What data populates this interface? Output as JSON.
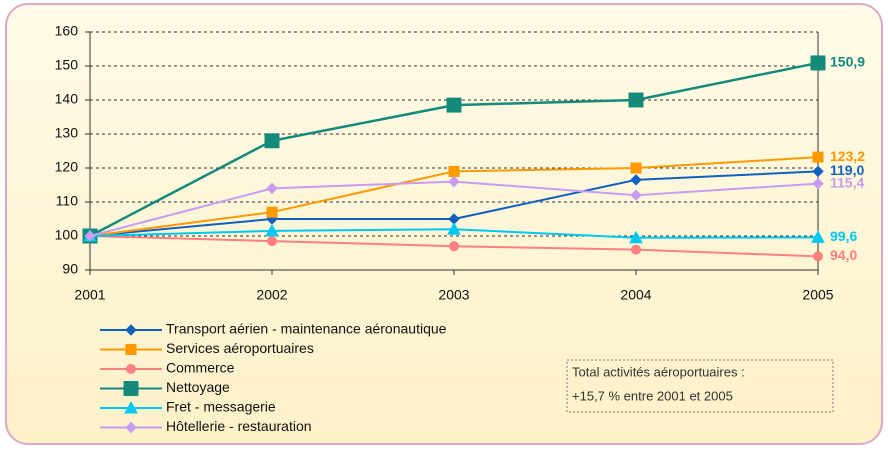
{
  "chart_data": {
    "type": "line",
    "categories": [
      "2001",
      "2002",
      "2003",
      "2004",
      "2005"
    ],
    "series": [
      {
        "name": "Transport aérien - maintenance aéronautique",
        "color": "#1060c0",
        "marker": "diamond",
        "values": [
          100,
          105,
          105,
          116.5,
          119.0
        ],
        "value_labels": [
          null,
          null,
          null,
          null,
          "119,0"
        ]
      },
      {
        "name": "Services aéroportuaires",
        "color": "#ff9900",
        "marker": "square",
        "values": [
          100,
          107,
          119,
          120,
          123.2
        ],
        "value_labels": [
          null,
          null,
          null,
          null,
          "123,2"
        ]
      },
      {
        "name": "Commerce",
        "color": "#ff8080",
        "marker": "circle",
        "values": [
          100,
          98.5,
          97,
          96,
          94.0
        ],
        "value_labels": [
          null,
          null,
          null,
          null,
          "94,0"
        ]
      },
      {
        "name": "Nettoyage",
        "color": "#138a7a",
        "marker": "bigsquare",
        "values": [
          100,
          128,
          138.5,
          140,
          150.9
        ],
        "value_labels": [
          null,
          null,
          null,
          null,
          "150,9"
        ]
      },
      {
        "name": "Fret - messagerie",
        "color": "#00c8f0",
        "marker": "triangle",
        "values": [
          100,
          101.5,
          102,
          99.5,
          99.6
        ],
        "value_labels": [
          null,
          null,
          null,
          null,
          "99,6"
        ]
      },
      {
        "name": "Hôtellerie - restauration",
        "color": "#c89cf0",
        "marker": "diamond",
        "values": [
          100,
          114,
          116,
          112,
          115.4
        ],
        "value_labels": [
          null,
          null,
          null,
          null,
          "115,4"
        ]
      }
    ],
    "ylim": [
      90,
      160
    ],
    "yticks": [
      90,
      100,
      110,
      120,
      130,
      140,
      150,
      160
    ],
    "grid": true,
    "annotation": [
      "Total activités aéroportuaires :",
      "+15,7 % entre 2001 et 2005"
    ]
  }
}
